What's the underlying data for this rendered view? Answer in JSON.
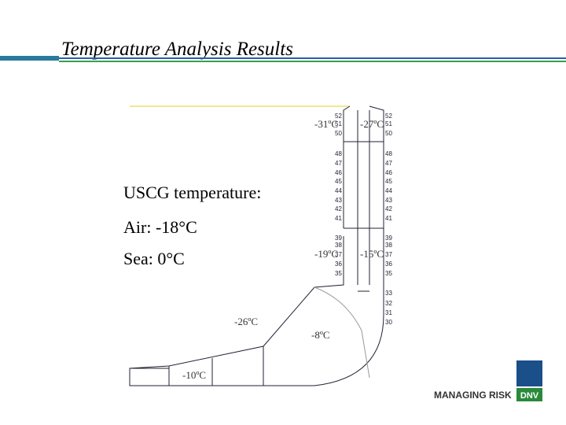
{
  "header": {
    "title": "Temperature Analysis Results"
  },
  "notes": [
    "USCG temperature:",
    "Air: -18°C",
    "Sea: 0°C"
  ],
  "temperatures": [
    "-31ºC",
    "-27ºC",
    "-19ºC",
    "-15ºC",
    "-26ºC",
    "-8ºC",
    "-10ºC"
  ],
  "nodes": {
    "left": [
      "52",
      "51",
      "50",
      "48",
      "47",
      "46",
      "45",
      "44",
      "43",
      "42",
      "41",
      "39",
      "38",
      "37",
      "36",
      "35"
    ],
    "right": [
      "52",
      "51",
      "50",
      "48",
      "47",
      "46",
      "45",
      "44",
      "43",
      "42",
      "41",
      "39",
      "38",
      "37",
      "36",
      "35",
      "33",
      "32",
      "31",
      "30"
    ]
  },
  "footer": {
    "slogan": "MANAGING RISK",
    "logo": "DNV"
  }
}
